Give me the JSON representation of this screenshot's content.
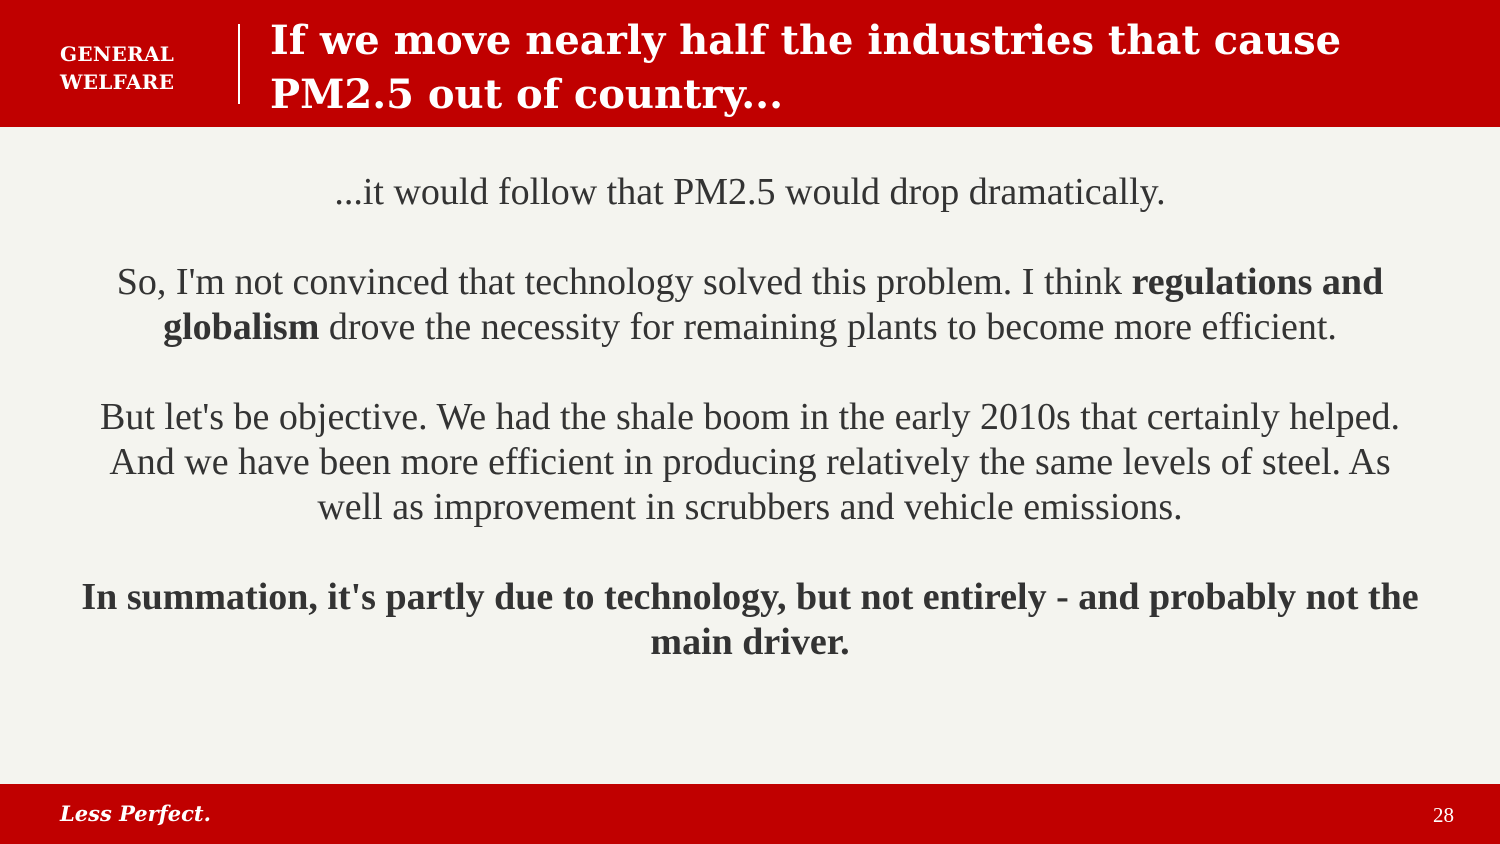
{
  "header": {
    "section_label": "GENERAL\nWELFARE",
    "section_label_line1": "GENERAL",
    "section_label_line2": "WELFARE",
    "title_line1": "If we move nearly half the industries that cause",
    "title_line2": "PM2.5 out of country..."
  },
  "body": {
    "p1": "...it would follow that PM2.5 would drop dramatically.",
    "p2_pre": "So, I'm not convinced that technology solved this problem. I think ",
    "p2_bold": "regulations and globalism",
    "p2_post": " drove the necessity for remaining plants to become more efficient.",
    "p3": "But let's be objective. We had the shale boom in the early 2010s that certainly helped. And we have been more efficient in producing relatively the same levels of steel. As well as improvement in scrubbers and vehicle emissions.",
    "p4": "In summation, it's partly due to technology, but not entirely - and probably not the main driver."
  },
  "footer": {
    "brand": "Less Perfect.",
    "page_number": "28"
  },
  "colors": {
    "accent": "#c00000",
    "background": "#f4f4ef",
    "text": "#333333"
  }
}
